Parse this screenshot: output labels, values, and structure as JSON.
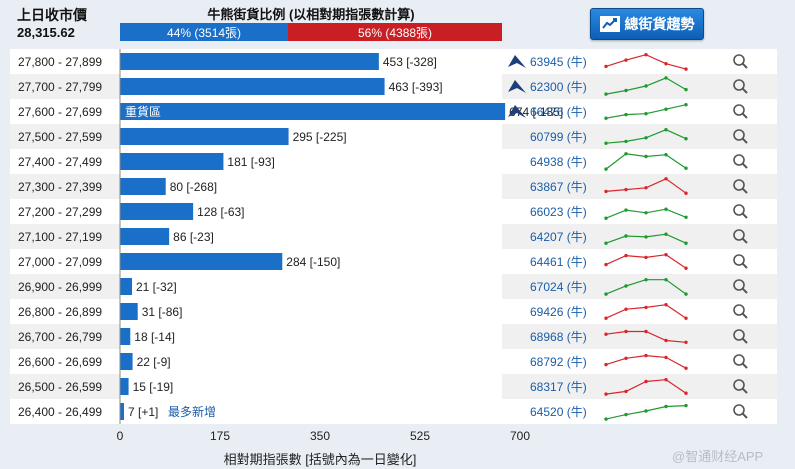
{
  "header": {
    "prev_close_label": "上日收市價",
    "prev_close_value": "28,315.62",
    "ratio_title": "牛熊街貨比例 (以相對期指張數計算)",
    "bull_label": "44% (3514張)",
    "bear_label": "56% (4388張)",
    "bull_pct": 44,
    "trend_button": "總街貨趨勢"
  },
  "colors": {
    "bar": "#1a6fc8",
    "bull": "#1a6fc8",
    "bear": "#c81e24",
    "spark_bull": "#1f9a2e",
    "spark_bear": "#d8262c",
    "link": "#1a5da8"
  },
  "chart_data": {
    "type": "bar",
    "orientation": "horizontal",
    "xaxis_ticks": [
      "0",
      "175",
      "350",
      "525",
      "700"
    ],
    "xlim": [
      0,
      700
    ],
    "xlabel": "相對期指張數 [括號內為一日變化]",
    "heavy_label": "重貨區",
    "newest_label": "最多新增",
    "rows": [
      {
        "range": "27,800 - 27,899",
        "value": 453,
        "label": "453 [-328]",
        "code": "63945 (牛)",
        "issuer_icon": true,
        "spark_type": "bear",
        "spark": [
          0.2,
          0.55,
          0.85,
          0.35,
          0.05
        ]
      },
      {
        "range": "27,700 - 27,799",
        "value": 463,
        "label": "463 [-393]",
        "code": "62300 (牛)",
        "issuer_icon": true,
        "spark_type": "bull",
        "spark": [
          0.05,
          0.25,
          0.5,
          0.95,
          0.3
        ]
      },
      {
        "range": "27,600 - 27,699",
        "value": 674,
        "label": "674 [-185]",
        "code": "66476 (牛)",
        "issuer_icon": true,
        "spark_type": "bull",
        "spark": [
          0.1,
          0.3,
          0.35,
          0.6,
          0.85
        ]
      },
      {
        "range": "27,500 - 27,599",
        "value": 295,
        "label": "295 [-225]",
        "code": "60799 (牛)",
        "issuer_icon": false,
        "spark_type": "bull",
        "spark": [
          0.1,
          0.2,
          0.4,
          0.85,
          0.35
        ]
      },
      {
        "range": "27,400 - 27,499",
        "value": 181,
        "label": "181 [-93]",
        "code": "64938 (牛)",
        "issuer_icon": false,
        "spark_type": "bull",
        "spark": [
          0.05,
          0.9,
          0.75,
          0.85,
          0.1
        ]
      },
      {
        "range": "27,300 - 27,399",
        "value": 80,
        "label": "80 [-268]",
        "code": "63867 (牛)",
        "issuer_icon": false,
        "spark_type": "bear",
        "spark": [
          0.2,
          0.3,
          0.4,
          0.9,
          0.1
        ]
      },
      {
        "range": "27,200 - 27,299",
        "value": 128,
        "label": "128 [-63]",
        "code": "66023 (牛)",
        "issuer_icon": false,
        "spark_type": "bull",
        "spark": [
          0.1,
          0.55,
          0.4,
          0.6,
          0.15
        ]
      },
      {
        "range": "27,100 - 27,199",
        "value": 86,
        "label": "86 [-23]",
        "code": "64207 (牛)",
        "issuer_icon": false,
        "spark_type": "bull",
        "spark": [
          0.1,
          0.5,
          0.45,
          0.6,
          0.1
        ]
      },
      {
        "range": "27,000 - 27,099",
        "value": 284,
        "label": "284 [-150]",
        "code": "64461 (牛)",
        "issuer_icon": false,
        "spark_type": "bear",
        "spark": [
          0.3,
          0.8,
          0.7,
          0.85,
          0.1
        ]
      },
      {
        "range": "26,900 - 26,999",
        "value": 21,
        "label": "21 [-32]",
        "code": "67024 (牛)",
        "issuer_icon": false,
        "spark_type": "bull",
        "spark": [
          0.05,
          0.5,
          0.85,
          0.85,
          0.05
        ]
      },
      {
        "range": "26,800 - 26,899",
        "value": 31,
        "label": "31 [-86]",
        "code": "69426 (牛)",
        "issuer_icon": false,
        "spark_type": "bear",
        "spark": [
          0.1,
          0.6,
          0.7,
          0.85,
          0.1
        ]
      },
      {
        "range": "26,700 - 26,799",
        "value": 18,
        "label": "18 [-14]",
        "code": "68968 (牛)",
        "issuer_icon": false,
        "spark_type": "bear",
        "spark": [
          0.6,
          0.75,
          0.75,
          0.25,
          0.15
        ]
      },
      {
        "range": "26,600 - 26,699",
        "value": 22,
        "label": "22 [-9]",
        "code": "68792 (牛)",
        "issuer_icon": false,
        "spark_type": "bear",
        "spark": [
          0.3,
          0.65,
          0.8,
          0.7,
          0.1
        ]
      },
      {
        "range": "26,500 - 26,599",
        "value": 15,
        "label": "15 [-19]",
        "code": "68317 (牛)",
        "issuer_icon": false,
        "spark_type": "bear",
        "spark": [
          0.05,
          0.2,
          0.75,
          0.85,
          0.1
        ]
      },
      {
        "range": "26,400 - 26,499",
        "value": 7,
        "label": "7 [+1]",
        "code": "64520 (牛)",
        "issuer_icon": false,
        "spark_type": "bull",
        "spark": [
          0.05,
          0.3,
          0.5,
          0.75,
          0.8
        ]
      }
    ]
  },
  "watermark": "@智通财经APP"
}
